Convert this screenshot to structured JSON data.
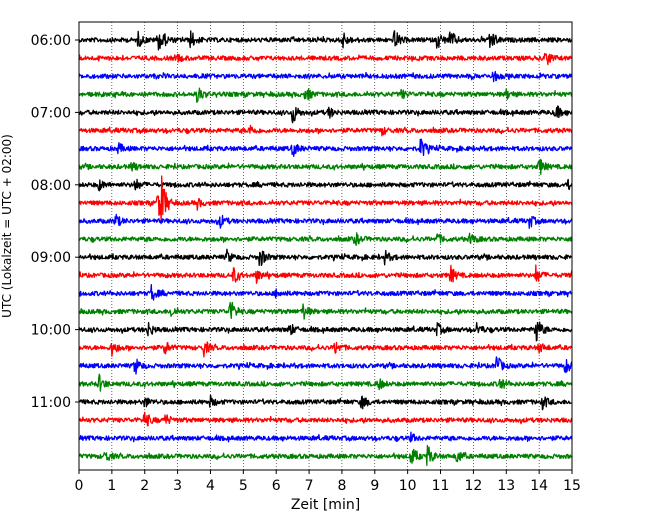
{
  "chart_data": {
    "type": "line",
    "title": "",
    "xlabel": "Zeit  [min]",
    "ylabel": "UTC (Lokalzeit = UTC + 02:00)",
    "xlim": [
      0,
      15
    ],
    "x_ticks": [
      0,
      1,
      2,
      3,
      4,
      5,
      6,
      7,
      8,
      9,
      10,
      11,
      12,
      13,
      14,
      15
    ],
    "y_tick_labels": [
      "06:00",
      "07:00",
      "08:00",
      "09:00",
      "10:00",
      "11:00"
    ],
    "y_tick_trace_index": [
      0,
      4,
      8,
      12,
      16,
      20
    ],
    "trace_interval_min": 15,
    "grid": "vertical-dotted",
    "trace_colors": [
      "#000000",
      "#ff0000",
      "#0000ff",
      "#008000"
    ],
    "traces": [
      {
        "start": "06:00",
        "color": "#000000",
        "events": [
          [
            1.8,
            1.4
          ],
          [
            2.4,
            1.8
          ],
          [
            2.5,
            1.4
          ],
          [
            3.4,
            1.8
          ],
          [
            8.0,
            1.9
          ],
          [
            9.6,
            2.0
          ],
          [
            10.9,
            1.8
          ],
          [
            11.3,
            2.0
          ],
          [
            12.5,
            2.4
          ]
        ]
      },
      {
        "start": "06:15",
        "color": "#ff0000",
        "events": [
          [
            3.0,
            0.6
          ],
          [
            14.2,
            1.7
          ]
        ]
      },
      {
        "start": "06:30",
        "color": "#0000ff",
        "events": [
          [
            12.6,
            1.0
          ]
        ]
      },
      {
        "start": "06:45",
        "color": "#008000",
        "events": [
          [
            3.6,
            1.8
          ],
          [
            6.9,
            1.4
          ],
          [
            9.8,
            0.8
          ],
          [
            13.0,
            0.9
          ]
        ]
      },
      {
        "start": "07:00",
        "color": "#000000",
        "events": [
          [
            6.5,
            2.2
          ],
          [
            7.6,
            1.0
          ],
          [
            14.5,
            1.6
          ]
        ]
      },
      {
        "start": "07:15",
        "color": "#ff0000",
        "events": [
          [
            5.2,
            1.0
          ],
          [
            9.2,
            0.8
          ]
        ]
      },
      {
        "start": "07:30",
        "color": "#0000ff",
        "events": [
          [
            1.2,
            1.0
          ],
          [
            6.5,
            1.5
          ],
          [
            10.4,
            2.3
          ]
        ]
      },
      {
        "start": "07:45",
        "color": "#008000",
        "events": [
          [
            1.6,
            0.8
          ],
          [
            14.0,
            1.8
          ]
        ]
      },
      {
        "start": "08:00",
        "color": "#000000",
        "events": [
          [
            0.6,
            1.0
          ],
          [
            1.7,
            1.2
          ],
          [
            14.9,
            1.0
          ]
        ]
      },
      {
        "start": "08:15",
        "color": "#ff0000",
        "events": [
          [
            2.4,
            3.0
          ],
          [
            2.5,
            4.5
          ],
          [
            3.6,
            0.8
          ]
        ]
      },
      {
        "start": "08:30",
        "color": "#0000ff",
        "events": [
          [
            1.1,
            1.4
          ],
          [
            4.3,
            1.2
          ],
          [
            13.7,
            1.3
          ]
        ]
      },
      {
        "start": "08:45",
        "color": "#008000",
        "events": [
          [
            8.4,
            1.3
          ],
          [
            10.9,
            1.0
          ],
          [
            11.9,
            1.2
          ]
        ]
      },
      {
        "start": "09:00",
        "color": "#000000",
        "events": [
          [
            4.5,
            1.2
          ],
          [
            5.5,
            2.2
          ],
          [
            9.3,
            1.2
          ]
        ]
      },
      {
        "start": "09:15",
        "color": "#ff0000",
        "events": [
          [
            4.7,
            1.6
          ],
          [
            5.4,
            1.2
          ],
          [
            11.3,
            1.8
          ],
          [
            13.9,
            1.7
          ],
          [
            15.0,
            1.6
          ]
        ]
      },
      {
        "start": "09:30",
        "color": "#0000ff",
        "events": [
          [
            2.2,
            1.6
          ],
          [
            6.0,
            0.8
          ]
        ]
      },
      {
        "start": "09:45",
        "color": "#008000",
        "events": [
          [
            2.8,
            1.0
          ],
          [
            4.6,
            2.4
          ],
          [
            6.8,
            1.8
          ]
        ]
      },
      {
        "start": "10:00",
        "color": "#000000",
        "events": [
          [
            2.1,
            1.5
          ],
          [
            6.4,
            1.3
          ],
          [
            10.9,
            1.2
          ],
          [
            12.1,
            1.2
          ],
          [
            13.9,
            3.0
          ]
        ]
      },
      {
        "start": "10:15",
        "color": "#ff0000",
        "events": [
          [
            1.0,
            1.6
          ],
          [
            2.6,
            1.4
          ],
          [
            3.8,
            1.6
          ],
          [
            7.8,
            1.3
          ],
          [
            14.0,
            1.0
          ]
        ]
      },
      {
        "start": "10:30",
        "color": "#0000ff",
        "events": [
          [
            1.7,
            1.8
          ],
          [
            12.7,
            2.2
          ],
          [
            14.8,
            1.5
          ]
        ]
      },
      {
        "start": "10:45",
        "color": "#008000",
        "events": [
          [
            0.6,
            1.8
          ],
          [
            9.1,
            1.2
          ],
          [
            12.8,
            1.3
          ]
        ]
      },
      {
        "start": "11:00",
        "color": "#000000",
        "events": [
          [
            2.0,
            1.0
          ],
          [
            4.0,
            1.0
          ],
          [
            8.6,
            1.5
          ],
          [
            14.1,
            1.3
          ]
        ]
      },
      {
        "start": "11:15",
        "color": "#ff0000",
        "events": [
          [
            2.0,
            1.8
          ],
          [
            2.6,
            1.4
          ]
        ]
      },
      {
        "start": "11:30",
        "color": "#0000ff",
        "events": [
          [
            10.1,
            0.8
          ]
        ]
      },
      {
        "start": "11:45",
        "color": "#008000",
        "events": [
          [
            0.8,
            1.2
          ],
          [
            10.1,
            2.0
          ],
          [
            10.6,
            2.2
          ],
          [
            11.5,
            1.5
          ]
        ]
      }
    ]
  }
}
